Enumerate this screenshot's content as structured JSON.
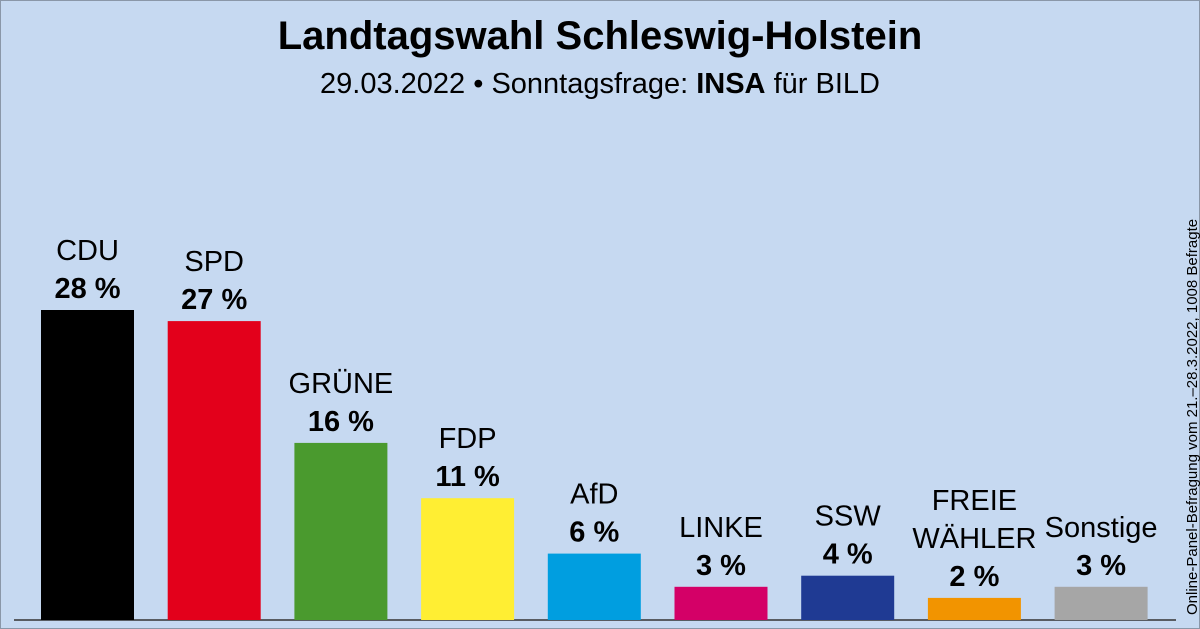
{
  "header": {
    "title": "Landtagswahl Schleswig-Holstein",
    "subtitle_prefix": "29.03.2022 • Sonntagsfrage:",
    "institute": "INSA",
    "subtitle_suffix": "für BILD"
  },
  "note": "Online-Panel-Befragung vom 21.–28.3.2022, 1008 Befragte",
  "chart_data": {
    "type": "bar",
    "title": "Landtagswahl Schleswig-Holstein",
    "categories": [
      "CDU",
      "SPD",
      "GRÜNE",
      "FDP",
      "AfD",
      "LINKE",
      "SSW",
      "FREIE WÄHLER",
      "Sonstige"
    ],
    "values": [
      28,
      27,
      16,
      11,
      6,
      3,
      4,
      2,
      3
    ],
    "value_labels": [
      "28 %",
      "27 %",
      "16 %",
      "11 %",
      "6 %",
      "3 %",
      "4 %",
      "2 %",
      "3 %"
    ],
    "colors": [
      "#000000",
      "#e3001b",
      "#4a9a2e",
      "#ffee33",
      "#009ee0",
      "#d40067",
      "#1f3a93",
      "#f29400",
      "#a6a6a6"
    ],
    "label_lines": [
      [
        "CDU"
      ],
      [
        "SPD"
      ],
      [
        "GRÜNE"
      ],
      [
        "FDP"
      ],
      [
        "AfD"
      ],
      [
        "LINKE"
      ],
      [
        "SSW"
      ],
      [
        "FREIE",
        "WÄHLER"
      ],
      [
        "Sonstige"
      ]
    ],
    "unit": "%",
    "ylim": [
      0,
      28
    ],
    "grid": false,
    "legend": "none"
  }
}
